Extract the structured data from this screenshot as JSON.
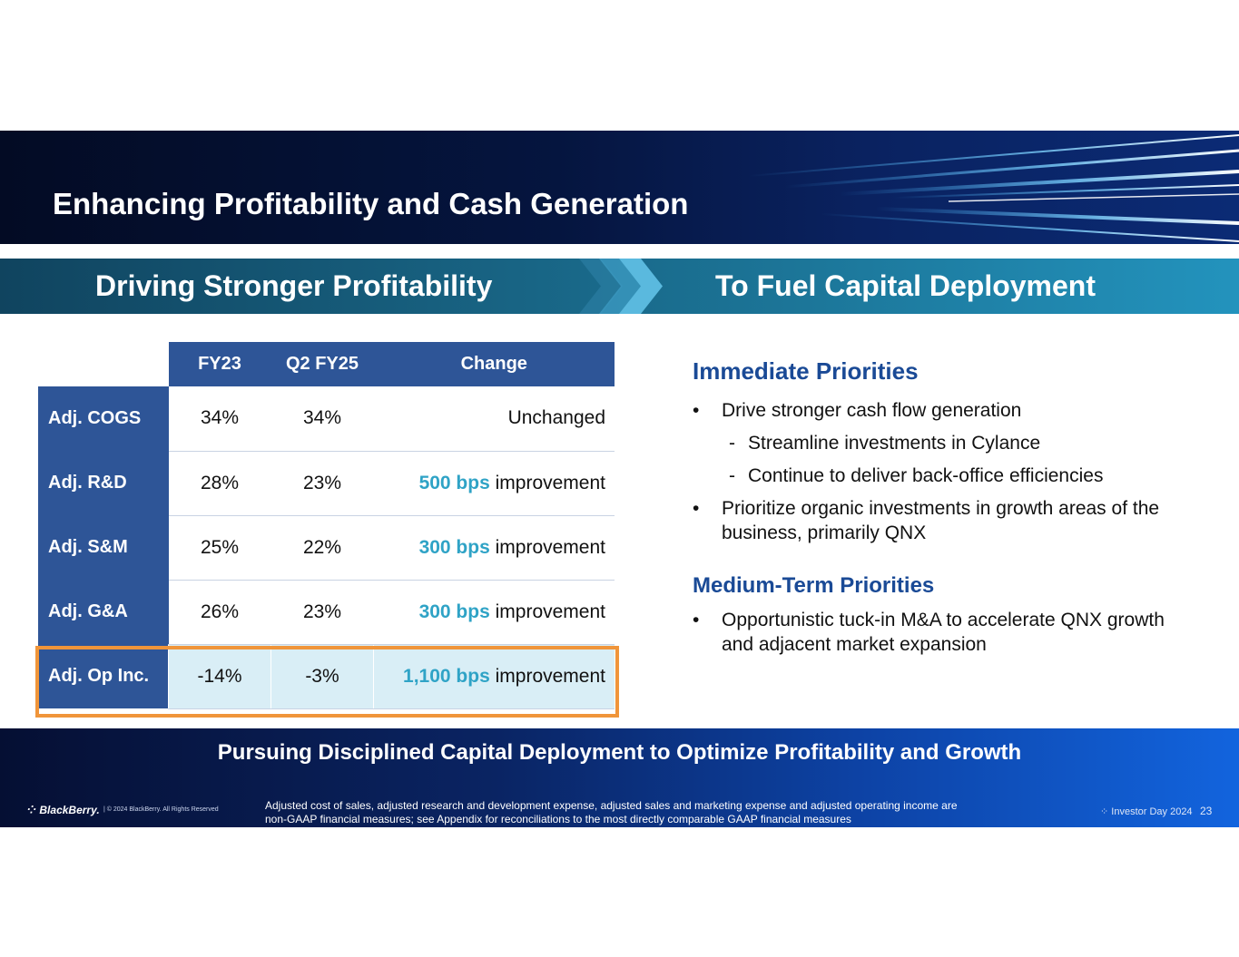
{
  "slide": {
    "title": "Enhancing Profitability and Cash Generation",
    "section_left": "Driving Stronger Profitability",
    "section_right": "To Fuel Capital Deployment"
  },
  "table": {
    "headers": [
      "FY23",
      "Q2 FY25",
      "Change"
    ],
    "rows": [
      {
        "label": "Adj. COGS",
        "fy23": "34%",
        "q2fy25": "34%",
        "change_bps": "",
        "change_text": "Unchanged"
      },
      {
        "label": "Adj. R&D",
        "fy23": "28%",
        "q2fy25": "23%",
        "change_bps": "500 bps",
        "change_text": " improvement"
      },
      {
        "label": "Adj. S&M",
        "fy23": "25%",
        "q2fy25": "22%",
        "change_bps": "300 bps",
        "change_text": " improvement"
      },
      {
        "label": "Adj. G&A",
        "fy23": "26%",
        "q2fy25": "23%",
        "change_bps": "300 bps",
        "change_text": " improvement"
      },
      {
        "label": "Adj. Op Inc.",
        "fy23": "-14%",
        "q2fy25": "-3%",
        "change_bps": "1,100 bps",
        "change_text": " improvement"
      }
    ]
  },
  "priorities": {
    "immediate_heading": "Immediate Priorities",
    "immediate_items": [
      {
        "text": "Drive stronger cash flow generation",
        "level": 1
      },
      {
        "text": "Streamline investments in Cylance",
        "level": 2
      },
      {
        "text": "Continue to deliver back-office efficiencies",
        "level": 2
      },
      {
        "text": "Prioritize organic investments in growth areas of the business, primarily QNX",
        "level": 1
      }
    ],
    "medium_heading": "Medium-Term Priorities",
    "medium_items": [
      {
        "text": "Opportunistic tuck-in M&A to accelerate QNX growth and adjacent market expansion",
        "level": 1
      }
    ]
  },
  "footer": {
    "tagline": "Pursuing Disciplined Capital Deployment to Optimize Profitability and Growth",
    "logo_text": "BlackBerry.",
    "copyright": "| © 2024 BlackBerry. All Rights Reserved",
    "note": "Adjusted cost of sales, adjusted research and development expense, adjusted sales and marketing expense and adjusted operating income are non-GAAP financial measures; see Appendix for reconciliations to the most directly comparable GAAP financial measures",
    "event": "Investor Day 2024",
    "page_number": "23"
  },
  "colors": {
    "header_blue": "#2e5597",
    "highlight_orange": "#f0953a",
    "bps_teal": "#2fa3c6",
    "heading_blue": "#1a4a96",
    "highlight_row": "#d9eef6"
  }
}
